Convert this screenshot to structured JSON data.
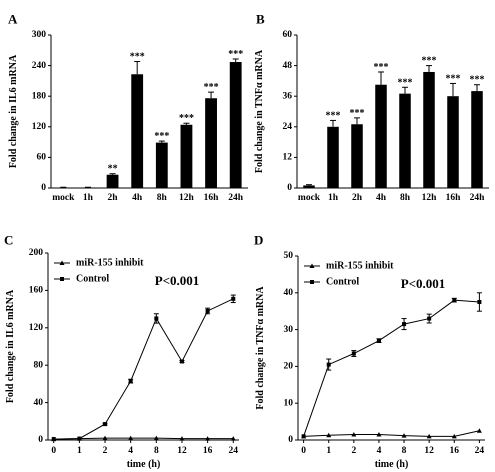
{
  "chart_data": [
    {
      "panel": "A",
      "type": "bar",
      "categories": [
        "mock",
        "1h",
        "2h",
        "4h",
        "8h",
        "12h",
        "16h",
        "24h"
      ],
      "values": [
        1,
        1,
        26,
        223,
        89,
        124,
        176,
        247
      ],
      "errors": [
        0.5,
        0.5,
        2,
        25,
        3,
        3,
        12,
        6
      ],
      "significance": [
        "",
        "",
        "**",
        "***",
        "***",
        "***",
        "***",
        "***"
      ],
      "xlabel": "",
      "ylabel": "Fold change in IL6 mRNA",
      "ylim": [
        0,
        300
      ],
      "yticks": [
        0,
        60,
        120,
        180,
        240,
        300
      ],
      "color": "#000000"
    },
    {
      "panel": "B",
      "type": "bar",
      "categories": [
        "mock",
        "1h",
        "2h",
        "4h",
        "8h",
        "12h",
        "16h",
        "24h"
      ],
      "values": [
        1,
        24,
        25,
        40.5,
        37,
        45.5,
        36,
        38
      ],
      "errors": [
        0.3,
        2.5,
        2.5,
        5,
        2.5,
        2.5,
        5,
        2.5
      ],
      "significance": [
        "",
        "***",
        "***",
        "***",
        "***",
        "***",
        "***",
        "***"
      ],
      "xlabel": "",
      "ylabel": "Fold change in TNFα mRNA",
      "ylim": [
        0,
        60
      ],
      "yticks": [
        0,
        12,
        24,
        36,
        48,
        60
      ],
      "color": "#000000"
    },
    {
      "panel": "C",
      "type": "line",
      "x": [
        0,
        1,
        2,
        4,
        8,
        12,
        16,
        24
      ],
      "xticks": [
        0,
        1,
        2,
        4,
        8,
        12,
        16,
        24
      ],
      "series": [
        {
          "name": "miR-155 inhibit",
          "marker": "triangle",
          "values": [
            1,
            1.5,
            2,
            2,
            2,
            1.5,
            1.5,
            1.5
          ],
          "errors": [
            0,
            0,
            0,
            0,
            0,
            0,
            0,
            0
          ]
        },
        {
          "name": "Control",
          "marker": "square",
          "values": [
            1,
            1.5,
            17,
            63,
            130,
            84,
            138,
            151
          ],
          "errors": [
            0,
            0,
            1,
            2,
            5,
            1,
            3,
            4
          ]
        }
      ],
      "annotation": "P<0.001",
      "xlabel": "time (h)",
      "ylabel": "Fold change in IL6 mRNA",
      "ylim": [
        0,
        200
      ],
      "yticks": [
        0,
        40,
        80,
        120,
        160,
        200
      ]
    },
    {
      "panel": "D",
      "type": "line",
      "x": [
        0,
        1,
        2,
        4,
        8,
        12,
        16,
        24
      ],
      "xticks": [
        0,
        1,
        2,
        4,
        8,
        12,
        16,
        24
      ],
      "series": [
        {
          "name": "miR-155 inhibit",
          "marker": "triangle",
          "values": [
            1,
            1.3,
            1.5,
            1.5,
            1.2,
            1.0,
            1.0,
            2.5
          ],
          "errors": [
            0,
            0,
            0,
            0,
            0,
            0,
            0,
            0
          ]
        },
        {
          "name": "Control",
          "marker": "square",
          "values": [
            1,
            20.5,
            23.5,
            27,
            31.5,
            33,
            38,
            37.5
          ],
          "errors": [
            0,
            1.5,
            0.8,
            0.5,
            1.5,
            1.2,
            0.5,
            2.5
          ]
        }
      ],
      "annotation": "P<0.001",
      "xlabel": "time (h)",
      "ylabel": "Fold change in TNFα mRNA",
      "ylim": [
        0,
        50
      ],
      "yticks": [
        0,
        10,
        20,
        30,
        40,
        50
      ]
    }
  ]
}
